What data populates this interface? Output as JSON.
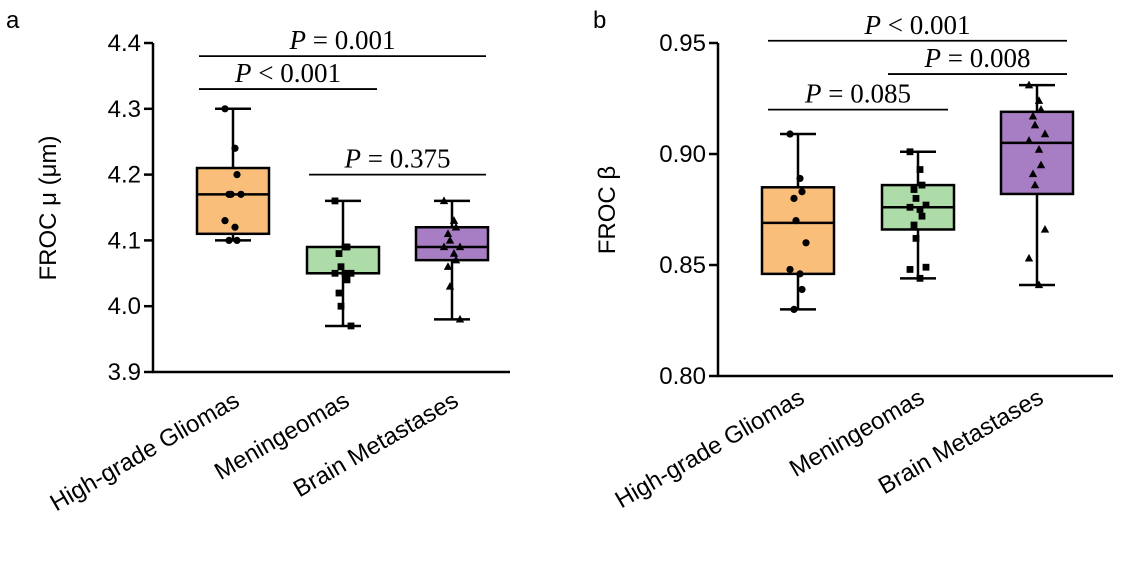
{
  "chart_data": [
    {
      "type": "box",
      "panel_label": "a",
      "ylabel": "FROC μ (μm)",
      "ylim": [
        3.9,
        4.4
      ],
      "yticks": [
        3.9,
        4.0,
        4.1,
        4.2,
        4.3,
        4.4
      ],
      "ytick_labels": [
        "3.9",
        "4.0",
        "4.1",
        "4.2",
        "4.3",
        "4.4"
      ],
      "categories": [
        "High-grade Gliomas",
        "Meningeomas",
        "Brain Metastases"
      ],
      "boxes": [
        {
          "name": "High-grade Gliomas",
          "color": "#F9BF7A",
          "marker": "circle",
          "min": 4.1,
          "q1": 4.11,
          "median": 4.17,
          "q3": 4.21,
          "max": 4.3,
          "points": [
            4.3,
            4.24,
            4.2,
            4.17,
            4.17,
            4.17,
            4.13,
            4.12,
            4.1,
            4.1
          ]
        },
        {
          "name": "Meningeomas",
          "color": "#ADDCA8",
          "marker": "square",
          "min": 3.97,
          "q1": 4.05,
          "median": 4.05,
          "q3": 4.09,
          "max": 4.16,
          "points": [
            4.16,
            4.09,
            4.09,
            4.08,
            4.06,
            4.05,
            4.05,
            4.05,
            4.04,
            4.02,
            4.0,
            3.97
          ]
        },
        {
          "name": "Brain Metastases",
          "color": "#A77DC4",
          "marker": "triangle",
          "min": 3.98,
          "q1": 4.07,
          "median": 4.09,
          "q3": 4.12,
          "max": 4.16,
          "points": [
            4.16,
            4.13,
            4.12,
            4.11,
            4.1,
            4.09,
            4.09,
            4.08,
            4.07,
            4.06,
            4.03,
            3.98
          ]
        }
      ],
      "comparisons": [
        {
          "pair": [
            1,
            3
          ],
          "label": "P = 0.001",
          "y": 4.38
        },
        {
          "pair": [
            1,
            2
          ],
          "label": "P < 0.001",
          "y": 4.33
        },
        {
          "pair": [
            2,
            3
          ],
          "label": "P = 0.375",
          "y": 4.2
        }
      ]
    },
    {
      "type": "box",
      "panel_label": "b",
      "ylabel": "FROC β",
      "ylim": [
        0.8,
        0.95
      ],
      "yticks": [
        0.8,
        0.85,
        0.9,
        0.95
      ],
      "ytick_labels": [
        "0.80",
        "0.85",
        "0.90",
        "0.95"
      ],
      "categories": [
        "High-grade Gliomas",
        "Meningeomas",
        "Brain Metastases"
      ],
      "boxes": [
        {
          "name": "High-grade Gliomas",
          "color": "#F9BF7A",
          "marker": "circle",
          "min": 0.83,
          "q1": 0.846,
          "median": 0.869,
          "q3": 0.885,
          "max": 0.909,
          "points": [
            0.909,
            0.889,
            0.883,
            0.88,
            0.87,
            0.86,
            0.848,
            0.846,
            0.839,
            0.83
          ]
        },
        {
          "name": "Meningeomas",
          "color": "#ADDCA8",
          "marker": "square",
          "min": 0.844,
          "q1": 0.866,
          "median": 0.876,
          "q3": 0.886,
          "max": 0.901,
          "points": [
            0.901,
            0.893,
            0.886,
            0.884,
            0.88,
            0.877,
            0.876,
            0.875,
            0.872,
            0.868,
            0.862,
            0.849,
            0.848,
            0.844
          ]
        },
        {
          "name": "Brain Metastases",
          "color": "#A77DC4",
          "marker": "triangle",
          "min": 0.841,
          "q1": 0.882,
          "median": 0.905,
          "q3": 0.919,
          "max": 0.931,
          "points": [
            0.931,
            0.924,
            0.92,
            0.917,
            0.913,
            0.909,
            0.906,
            0.902,
            0.895,
            0.891,
            0.886,
            0.866,
            0.853,
            0.841
          ]
        }
      ],
      "comparisons": [
        {
          "pair": [
            1,
            3
          ],
          "label": "P < 0.001",
          "y": 0.951
        },
        {
          "pair": [
            2,
            3
          ],
          "label": "P = 0.008",
          "y": 0.936
        },
        {
          "pair": [
            1,
            2
          ],
          "label": "P = 0.085",
          "y": 0.92
        }
      ]
    }
  ]
}
